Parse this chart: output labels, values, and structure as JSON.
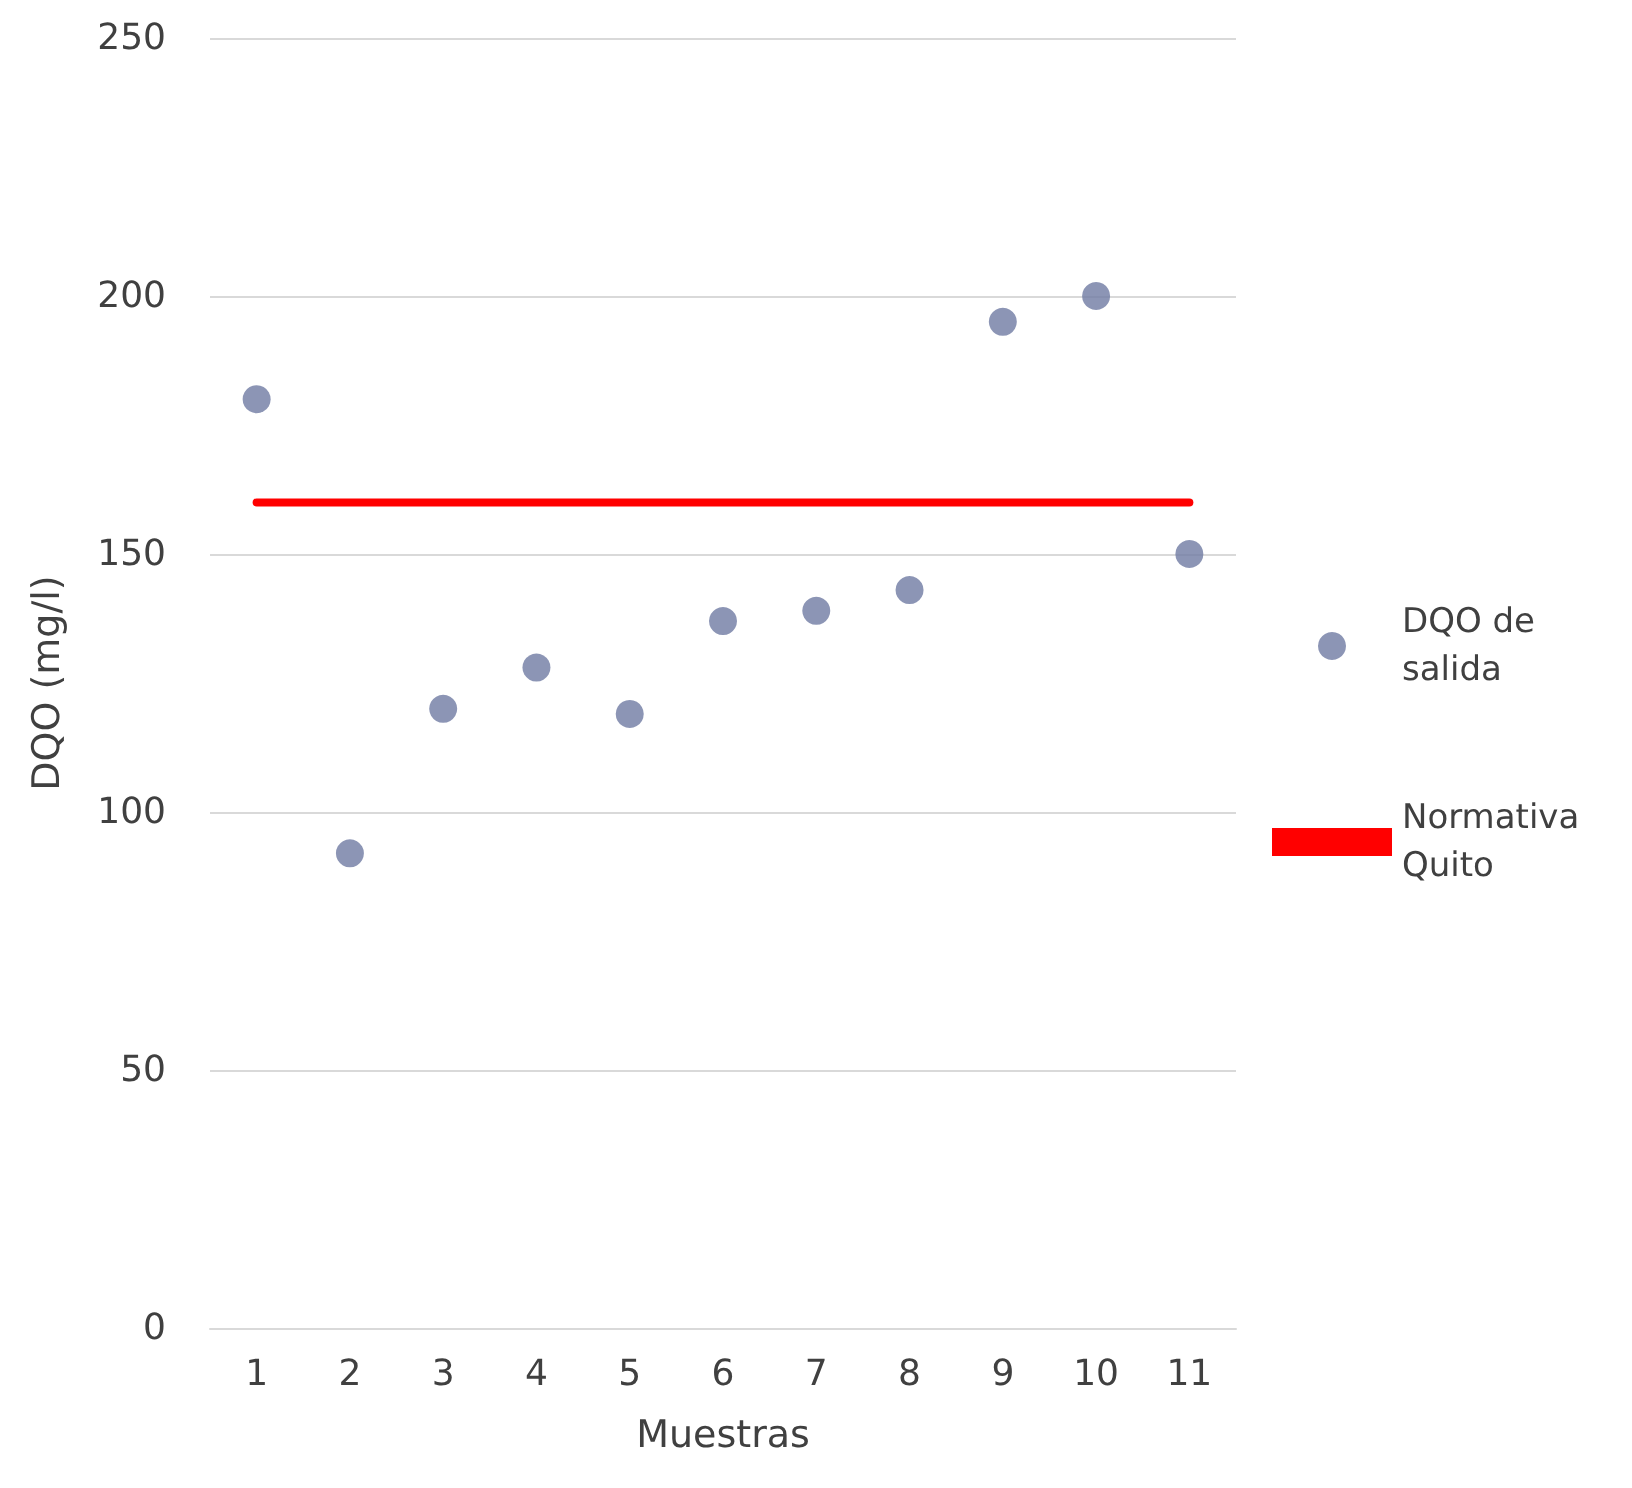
{
  "chart_data": {
    "type": "scatter",
    "xlabel": "Muestras",
    "ylabel": "DQO (mg/l)",
    "categories": [
      "1",
      "2",
      "3",
      "4",
      "5",
      "6",
      "7",
      "8",
      "9",
      "10",
      "11"
    ],
    "series": [
      {
        "name": "DQO de salida",
        "type": "scatter",
        "color": "#6f7aa3",
        "marker": "circle",
        "values": [
          180,
          92,
          120,
          128,
          119,
          137,
          139,
          143,
          195,
          200,
          150
        ]
      },
      {
        "name": "Normativa Quito",
        "type": "line",
        "color": "#ff0000",
        "marker": "none",
        "line_style": "solid",
        "values": [
          160,
          160,
          160,
          160,
          160,
          160,
          160,
          160,
          160,
          160,
          160
        ]
      }
    ],
    "ylim": [
      0,
      250
    ],
    "yticks": [
      0,
      50,
      100,
      150,
      200,
      250
    ],
    "grid": "y",
    "legend": "right"
  }
}
